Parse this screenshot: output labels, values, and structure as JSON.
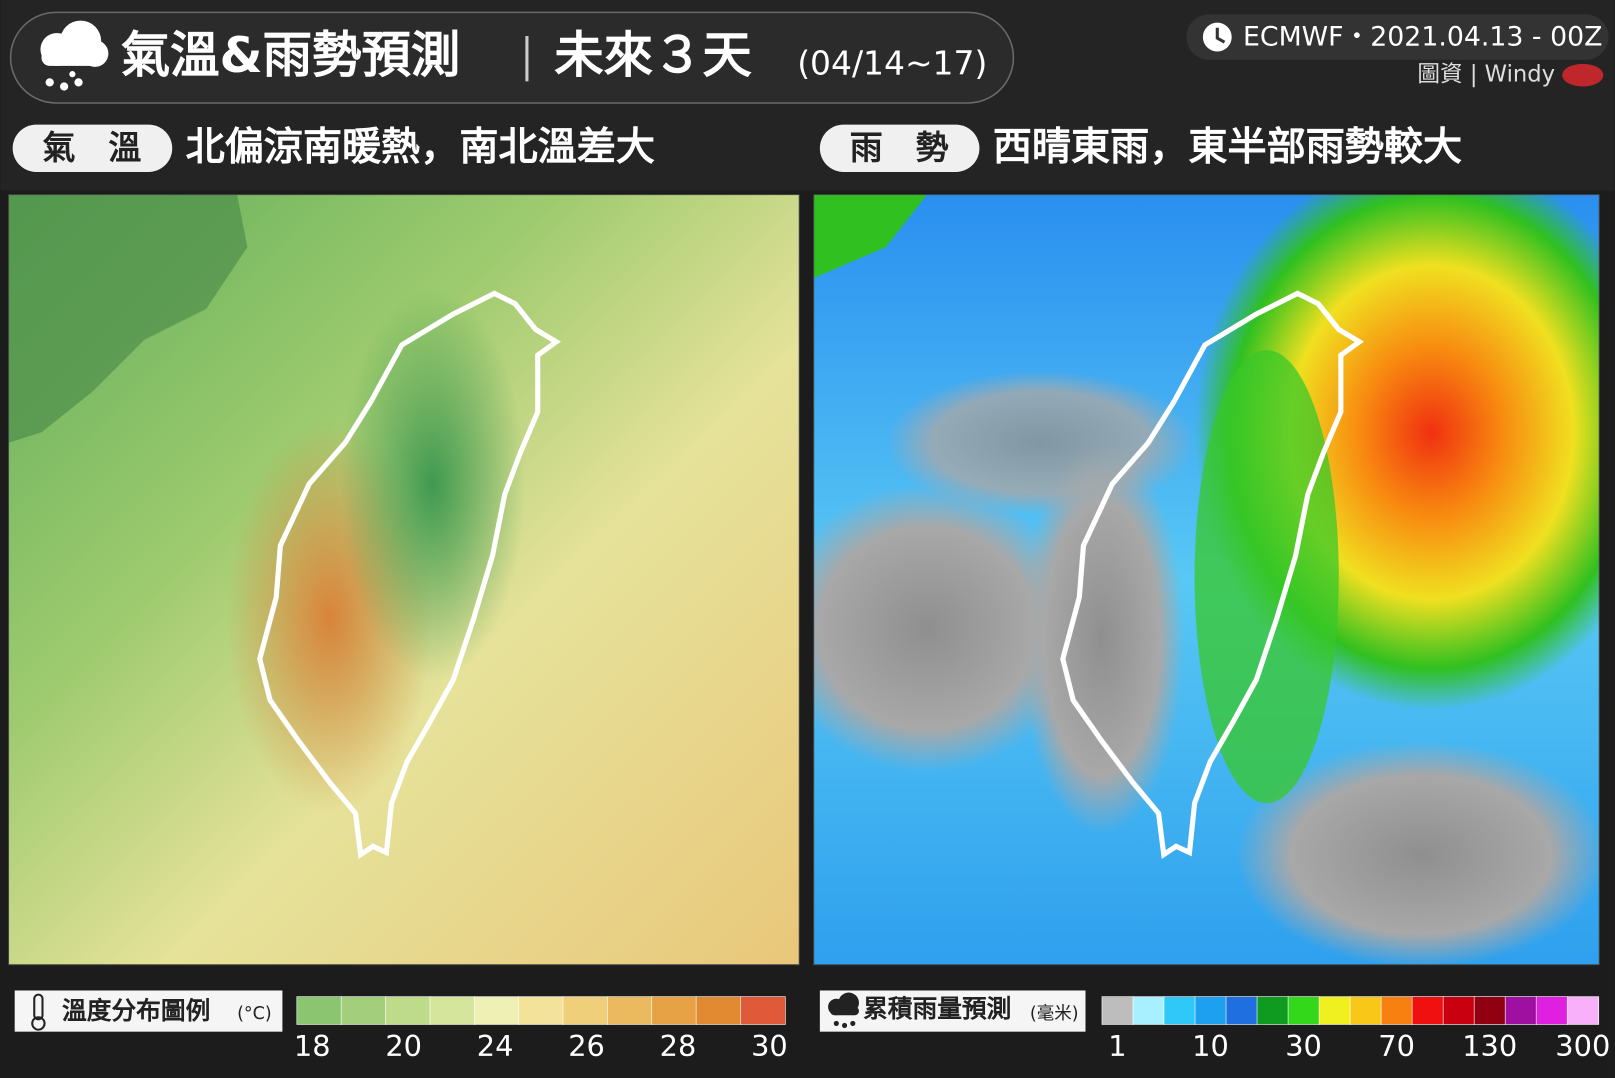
{
  "header": {
    "title": "氣溫&雨勢預測",
    "subtitle": "未來３天",
    "date_range": "(04/14~17)",
    "source": "ECMWF・2021.04.13 - 00Z",
    "credit": "圖資 | Windy"
  },
  "panels": [
    {
      "tag": "氣　溫",
      "summary": "北偏涼南暖熱，南北溫差大"
    },
    {
      "tag": "雨　勢",
      "summary": "西晴東雨，東半部雨勢較大"
    }
  ],
  "legends": [
    {
      "title": "溫度分布圖例",
      "unit": "(°C)",
      "colors": [
        "#8cc56f",
        "#a3cf7c",
        "#bddb8a",
        "#d6e59c",
        "#eef0b4",
        "#f3e29a",
        "#f0cf7b",
        "#ecba5e",
        "#e7a245",
        "#e28a31",
        "#e05a3a"
      ],
      "ticks": [
        18,
        20,
        24,
        26,
        28,
        30
      ]
    },
    {
      "title": "累積雨量預測",
      "unit": "(毫米)",
      "colors": [
        "#bdbdbd",
        "#a8f0ff",
        "#30c8f8",
        "#1ea0f0",
        "#1f6fe0",
        "#0f9a20",
        "#33d81a",
        "#f0f020",
        "#f8c818",
        "#f88010",
        "#f01010",
        "#c80010",
        "#900010",
        "#a010a0",
        "#e020e0",
        "#f8b0f8"
      ],
      "ticks": [
        1,
        10,
        30,
        70,
        130,
        300
      ]
    }
  ]
}
